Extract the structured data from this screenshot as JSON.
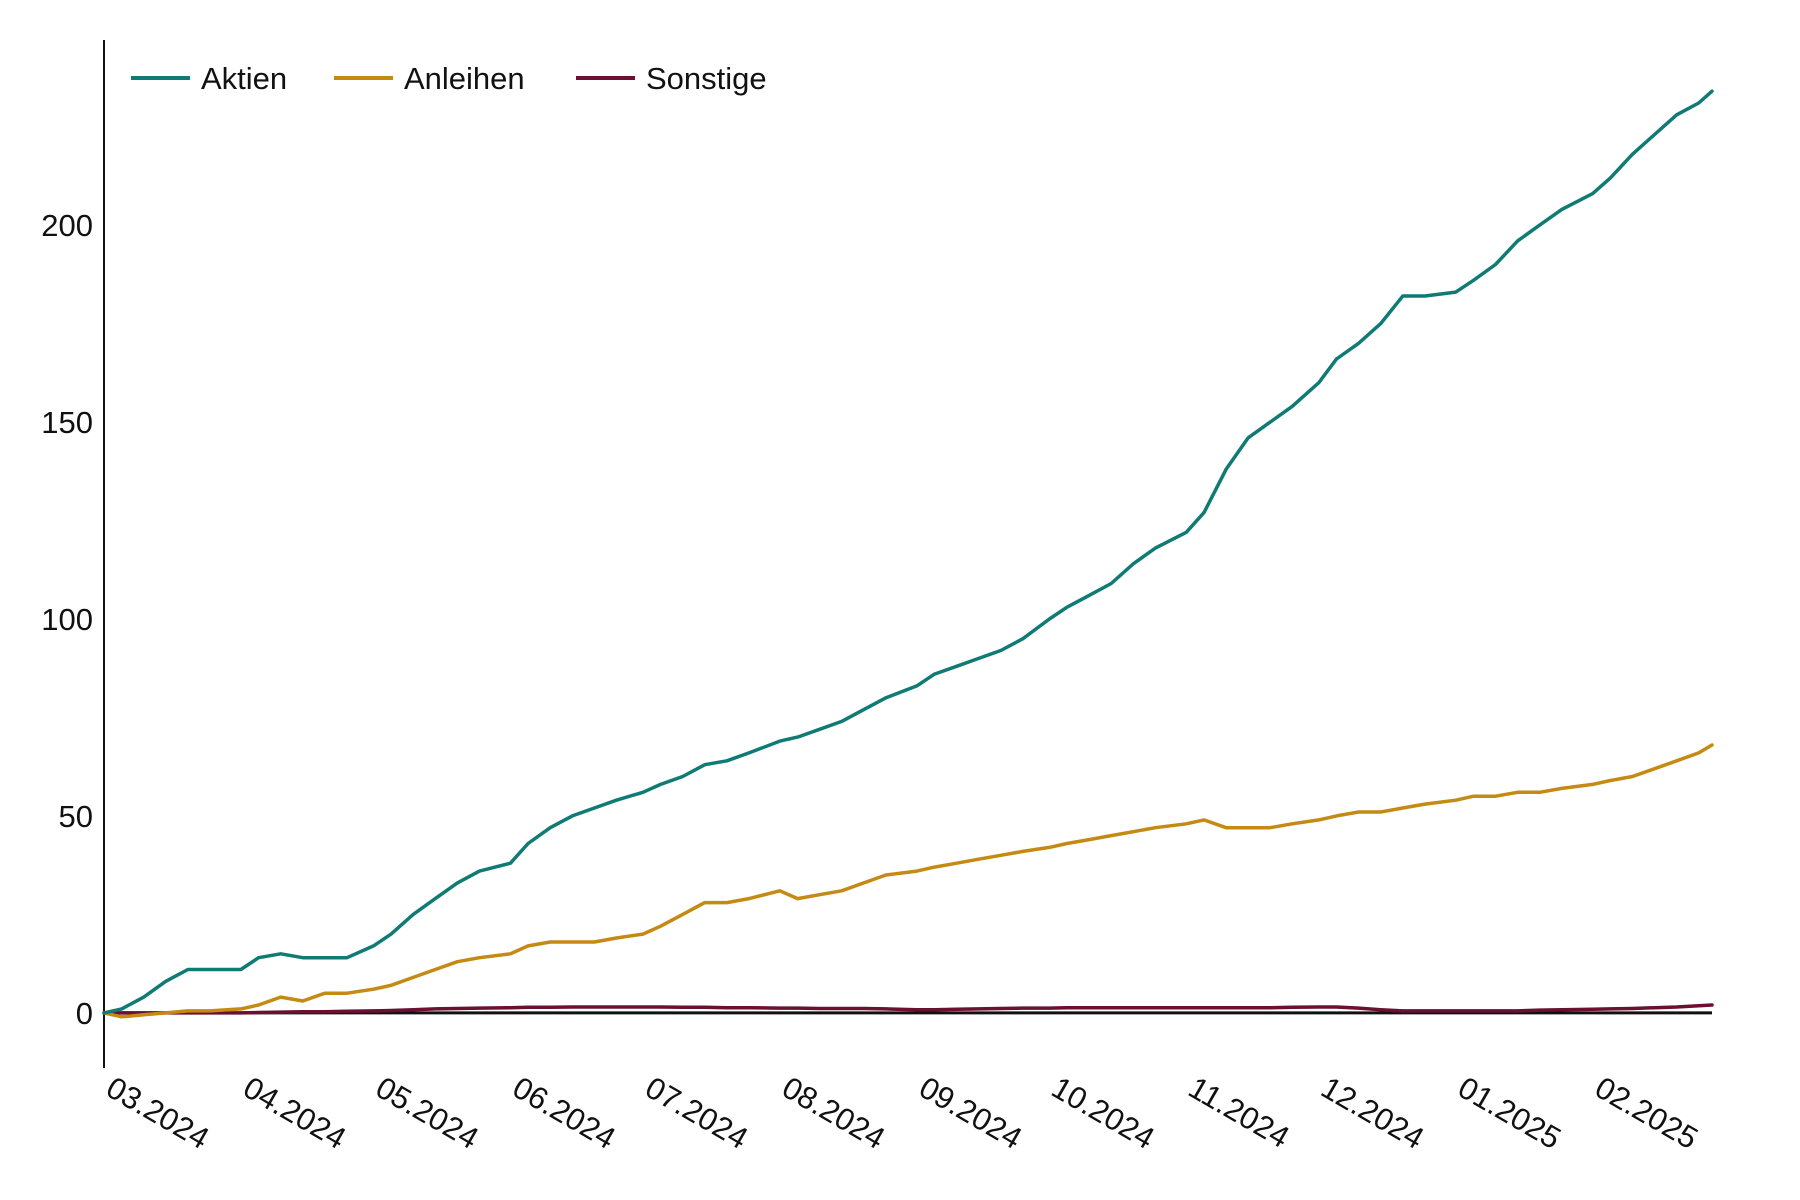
{
  "chart_data": {
    "type": "line",
    "title": "",
    "xlabel": "",
    "ylabel": "",
    "x_ticks": [
      "03.2024",
      "04.2024",
      "05.2024",
      "06.2024",
      "07.2024",
      "08.2024",
      "09.2024",
      "10.2024",
      "11.2024",
      "12.2024",
      "01.2025",
      "02.2025"
    ],
    "y_ticks": [
      "0",
      "50",
      "100",
      "150",
      "200"
    ],
    "ylim": [
      -14,
      247
    ],
    "xlim": [
      "2024-03-01",
      "2025-02-28"
    ],
    "grid": false,
    "legend_position": "top-left",
    "x": [
      "2024-03-01",
      "2024-03-05",
      "2024-03-10",
      "2024-03-15",
      "2024-03-20",
      "2024-03-25",
      "2024-04-01",
      "2024-04-05",
      "2024-04-10",
      "2024-04-15",
      "2024-04-20",
      "2024-04-25",
      "2024-05-01",
      "2024-05-05",
      "2024-05-10",
      "2024-05-15",
      "2024-05-20",
      "2024-05-25",
      "2024-06-01",
      "2024-06-05",
      "2024-06-10",
      "2024-06-15",
      "2024-06-20",
      "2024-06-25",
      "2024-07-01",
      "2024-07-05",
      "2024-07-10",
      "2024-07-15",
      "2024-07-20",
      "2024-07-25",
      "2024-08-01",
      "2024-08-05",
      "2024-08-10",
      "2024-08-15",
      "2024-08-20",
      "2024-08-25",
      "2024-09-01",
      "2024-09-05",
      "2024-09-10",
      "2024-09-15",
      "2024-09-20",
      "2024-09-25",
      "2024-10-01",
      "2024-10-05",
      "2024-10-10",
      "2024-10-15",
      "2024-10-20",
      "2024-10-25",
      "2024-11-01",
      "2024-11-05",
      "2024-11-10",
      "2024-11-15",
      "2024-11-20",
      "2024-11-25",
      "2024-12-01",
      "2024-12-05",
      "2024-12-10",
      "2024-12-15",
      "2024-12-20",
      "2024-12-25",
      "2025-01-01",
      "2025-01-05",
      "2025-01-10",
      "2025-01-15",
      "2025-01-20",
      "2025-01-25",
      "2025-02-01",
      "2025-02-05",
      "2025-02-10",
      "2025-02-15",
      "2025-02-20",
      "2025-02-25",
      "2025-02-28"
    ],
    "series": [
      {
        "name": "Aktien",
        "color": "#0f7b74",
        "values": [
          0,
          1,
          4,
          8,
          11,
          11,
          11,
          14,
          15,
          14,
          14,
          14,
          17,
          20,
          25,
          29,
          33,
          36,
          38,
          43,
          47,
          50,
          52,
          54,
          56,
          58,
          60,
          63,
          64,
          66,
          69,
          70,
          72,
          74,
          77,
          80,
          83,
          86,
          88,
          90,
          92,
          95,
          100,
          103,
          106,
          109,
          114,
          118,
          122,
          127,
          138,
          146,
          150,
          154,
          160,
          166,
          170,
          175,
          182,
          182,
          183,
          186,
          190,
          196,
          200,
          204,
          208,
          212,
          218,
          223,
          228,
          231,
          234
        ]
      },
      {
        "name": "Anleihen",
        "color": "#c48a14",
        "values": [
          0,
          -1,
          -0.5,
          0,
          0.5,
          0.5,
          1,
          2,
          4,
          3,
          5,
          5,
          6,
          7,
          9,
          11,
          13,
          14,
          15,
          17,
          18,
          18,
          18,
          19,
          20,
          22,
          25,
          28,
          28,
          29,
          31,
          29,
          30,
          31,
          33,
          35,
          36,
          37,
          38,
          39,
          40,
          41,
          42,
          43,
          44,
          45,
          46,
          47,
          48,
          49,
          47,
          47,
          47,
          48,
          49,
          50,
          51,
          51,
          52,
          53,
          54,
          55,
          55,
          56,
          56,
          57,
          58,
          59,
          60,
          62,
          64,
          66,
          68
        ]
      },
      {
        "name": "Sonstige",
        "color": "#6a1033",
        "values": [
          0,
          0,
          0,
          0,
          0,
          0,
          0,
          0.1,
          0.2,
          0.3,
          0.3,
          0.4,
          0.5,
          0.6,
          0.8,
          1,
          1.1,
          1.2,
          1.3,
          1.4,
          1.4,
          1.5,
          1.5,
          1.5,
          1.5,
          1.5,
          1.4,
          1.4,
          1.3,
          1.3,
          1.2,
          1.2,
          1.1,
          1.1,
          1.1,
          1,
          0.8,
          0.8,
          0.9,
          1,
          1.1,
          1.2,
          1.2,
          1.3,
          1.3,
          1.3,
          1.3,
          1.3,
          1.3,
          1.3,
          1.3,
          1.3,
          1.3,
          1.4,
          1.5,
          1.5,
          1.2,
          0.8,
          0.5,
          0.5,
          0.5,
          0.5,
          0.5,
          0.5,
          0.7,
          0.8,
          0.9,
          1,
          1.1,
          1.3,
          1.5,
          1.8,
          2
        ]
      }
    ]
  }
}
